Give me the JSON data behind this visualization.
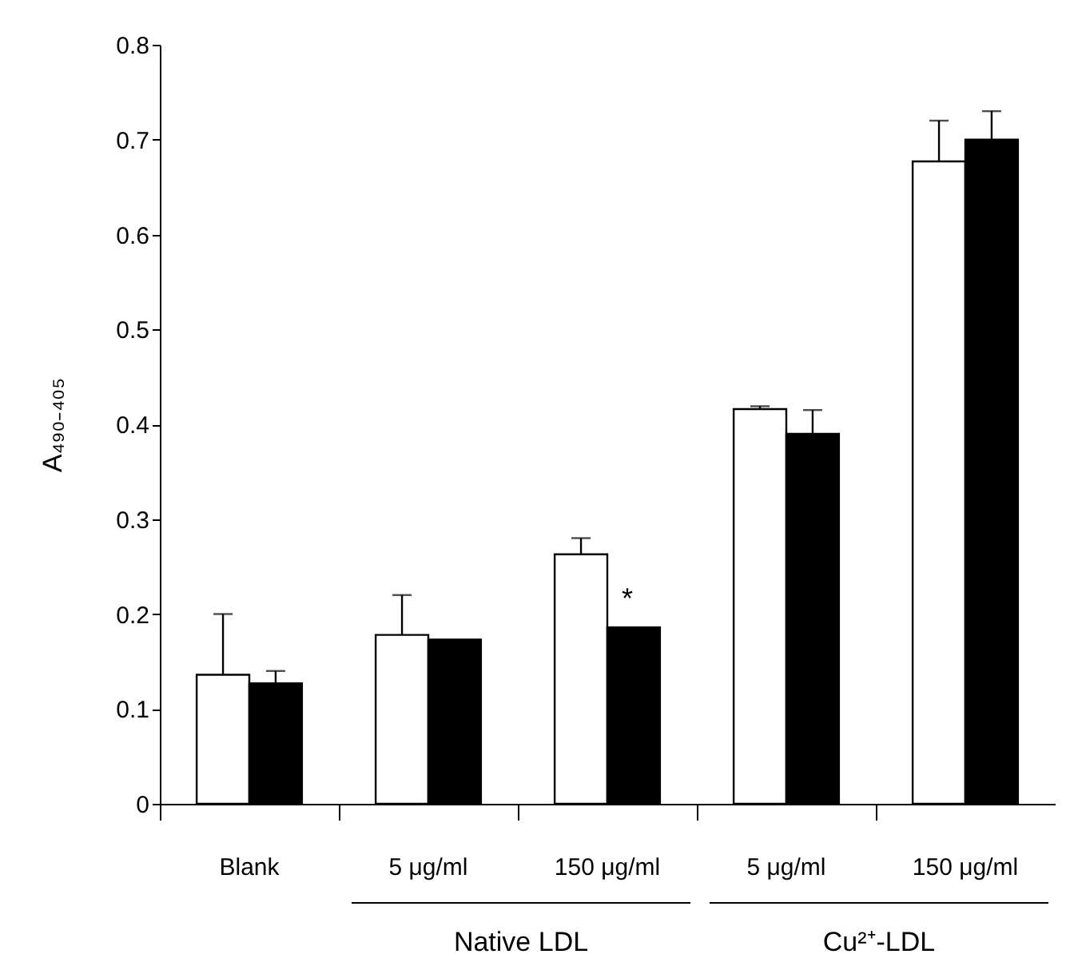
{
  "chart_data": {
    "type": "bar",
    "categories": [
      "Blank",
      "5 μg/ml",
      "150 μg/ml",
      "5 μg/ml",
      "150 μg/ml"
    ],
    "ylabel": "A₄₉₀₋₄₀₅",
    "ylim": [
      0,
      0.8
    ],
    "yticks": [
      0,
      0.1,
      0.2,
      0.3,
      0.4,
      0.5,
      0.6,
      0.7,
      0.8
    ],
    "grid": false,
    "series": [
      {
        "color": "#ffffff",
        "values": [
          0.136,
          0.178,
          0.263,
          0.416,
          0.677
        ],
        "errors": [
          [
            0.136,
            0.2
          ],
          [
            0.178,
            0.22
          ],
          [
            0.263,
            0.28
          ],
          [
            0.416,
            0.419
          ],
          [
            0.677,
            0.72
          ]
        ]
      },
      {
        "color": "#000000",
        "values": [
          0.127,
          0.173,
          0.186,
          0.39,
          0.7
        ],
        "errors": [
          [
            0.127,
            0.14
          ],
          null,
          null,
          [
            0.39,
            0.415
          ],
          [
            0.7,
            0.73
          ]
        ]
      }
    ],
    "annotations": [
      {
        "text": "*",
        "x": "150 μg/ml",
        "y": 0.2
      },
      "Native LDL",
      "Cu²⁺-LDL"
    ]
  }
}
